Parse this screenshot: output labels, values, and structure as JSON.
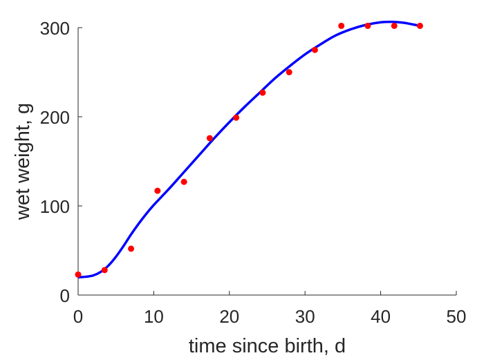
{
  "chart_data": {
    "type": "scatter",
    "title": "",
    "xlabel": "time since birth, d",
    "ylabel": "wet weight, g",
    "xlim": [
      0,
      50
    ],
    "ylim": [
      0,
      300
    ],
    "xticks": [
      0,
      10,
      20,
      30,
      40,
      50
    ],
    "yticks": [
      0,
      100,
      200,
      300
    ],
    "xtick_labels": [
      "0",
      "10",
      "20",
      "30",
      "40",
      "50"
    ],
    "ytick_labels": [
      "0",
      "100",
      "200",
      "300"
    ],
    "grid": false,
    "legend": "none",
    "series": [
      {
        "kind": "points",
        "color": "#ff0000",
        "x": [
          0,
          3.5,
          7,
          10.5,
          14,
          17.4,
          20.9,
          24.4,
          27.9,
          31.3,
          34.8,
          38.3,
          41.8,
          45.2
        ],
        "y": [
          23,
          28,
          52,
          117,
          127,
          176,
          199,
          227,
          250,
          275,
          302,
          302,
          302,
          302
        ]
      },
      {
        "kind": "line",
        "color": "#0000ff",
        "x": [
          0,
          1,
          2,
          3,
          4,
          5,
          6,
          7,
          8,
          9,
          10,
          12,
          14,
          16,
          18,
          20,
          22,
          24,
          26,
          28,
          30,
          32,
          34,
          36,
          38,
          40,
          41.5,
          43,
          44,
          45.2
        ],
        "y": [
          20,
          20.5,
          22,
          26,
          33,
          43,
          55,
          68,
          80,
          91,
          101,
          119,
          138,
          157,
          176,
          194,
          211,
          227,
          243,
          257,
          270,
          281,
          291,
          298,
          303,
          306,
          306.5,
          305.5,
          304,
          302
        ]
      }
    ]
  }
}
